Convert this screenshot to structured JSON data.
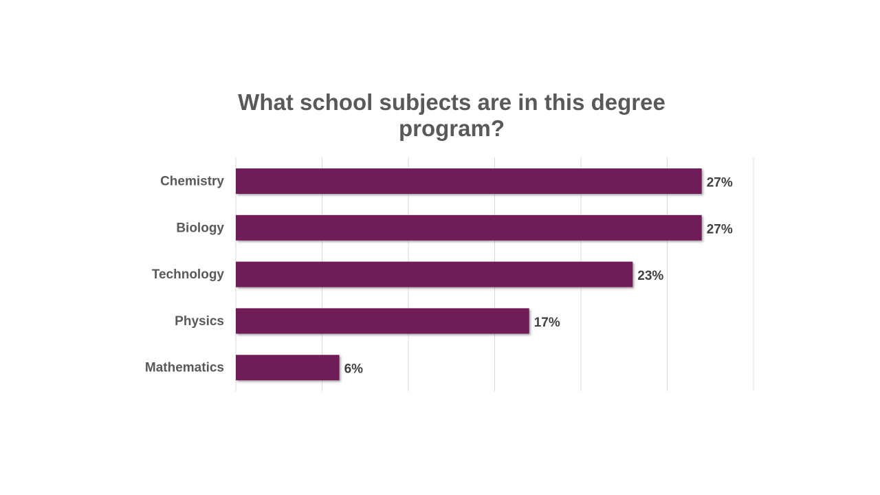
{
  "chart_data": {
    "type": "bar",
    "orientation": "horizontal",
    "title": "What school subjects are in this degree program?",
    "categories": [
      "Chemistry",
      "Biology",
      "Technology",
      "Physics",
      "Mathematics"
    ],
    "values": [
      27,
      27,
      23,
      17,
      6
    ],
    "value_labels": [
      "27%",
      "27%",
      "23%",
      "17%",
      "6%"
    ],
    "unit": "%",
    "xlim": [
      0,
      30
    ],
    "grid": true,
    "legend": "none",
    "colors": {
      "bar": "#701c57",
      "grid": "#d9d9d9"
    }
  }
}
